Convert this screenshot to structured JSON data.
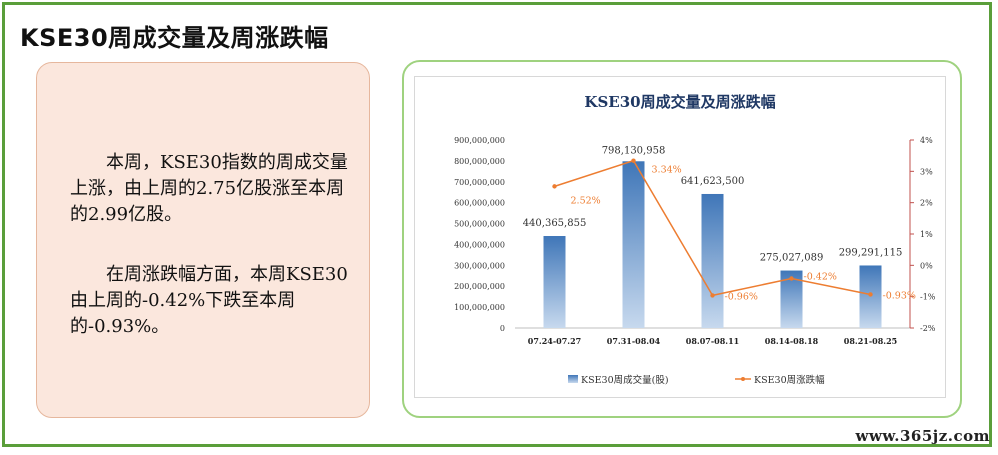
{
  "page": {
    "title": "KSE30周成交量及周涨跌幅",
    "paragraph1": "本周，KSE30指数的周成交量上涨，由上周的2.75亿股涨至本周的2.99亿股。",
    "paragraph2": "在周涨跌幅方面，本周KSE30由上周的-0.42%下跌至本周的-0.93%。",
    "watermark": "www.365jz.com"
  },
  "colors": {
    "frame": "#5a9e3a",
    "bar_top": "#3f76b8",
    "bar_bottom": "#c7d9ee",
    "line": "#ed7d31",
    "title": "#1f3864",
    "right_axis": "#c0504d"
  },
  "chart_data": {
    "type": "bar+line",
    "title": "KSE30周成交量及周涨跌幅",
    "categories": [
      "07.24-07.27",
      "07.31-08.04",
      "08.07-08.11",
      "08.14-08.18",
      "08.21-08.25"
    ],
    "series": [
      {
        "name": "KSE30周成交量(股)",
        "type": "bar",
        "axis": "left",
        "values": [
          440365855,
          798130958,
          641623500,
          275027089,
          299291115
        ],
        "labels": [
          "440,365,855",
          "798,130,958",
          "641,623,500",
          "275,027,089",
          "299,291,115"
        ]
      },
      {
        "name": "KSE30周涨跌幅",
        "type": "line",
        "axis": "right",
        "values": [
          2.52,
          3.34,
          -0.96,
          -0.42,
          -0.93
        ],
        "labels": [
          "2.52%",
          "3.34%",
          "-0.96%",
          "-0.42%",
          "-0.93%"
        ]
      }
    ],
    "left_axis": {
      "ylim": [
        0,
        900000000
      ],
      "ticks": [
        0,
        100000000,
        200000000,
        300000000,
        400000000,
        500000000,
        600000000,
        700000000,
        800000000,
        900000000
      ],
      "tick_labels": [
        "0",
        "100,000,000",
        "200,000,000",
        "300,000,000",
        "400,000,000",
        "500,000,000",
        "600,000,000",
        "700,000,000",
        "800,000,000",
        "900,000,000"
      ]
    },
    "right_axis": {
      "ylim": [
        -2,
        4
      ],
      "ticks": [
        -2,
        -1,
        0,
        1,
        2,
        3,
        4
      ],
      "tick_labels": [
        "-2%",
        "-1%",
        "0%",
        "1%",
        "2%",
        "3%",
        "4%"
      ]
    },
    "grid": false,
    "legend": "bottom"
  }
}
